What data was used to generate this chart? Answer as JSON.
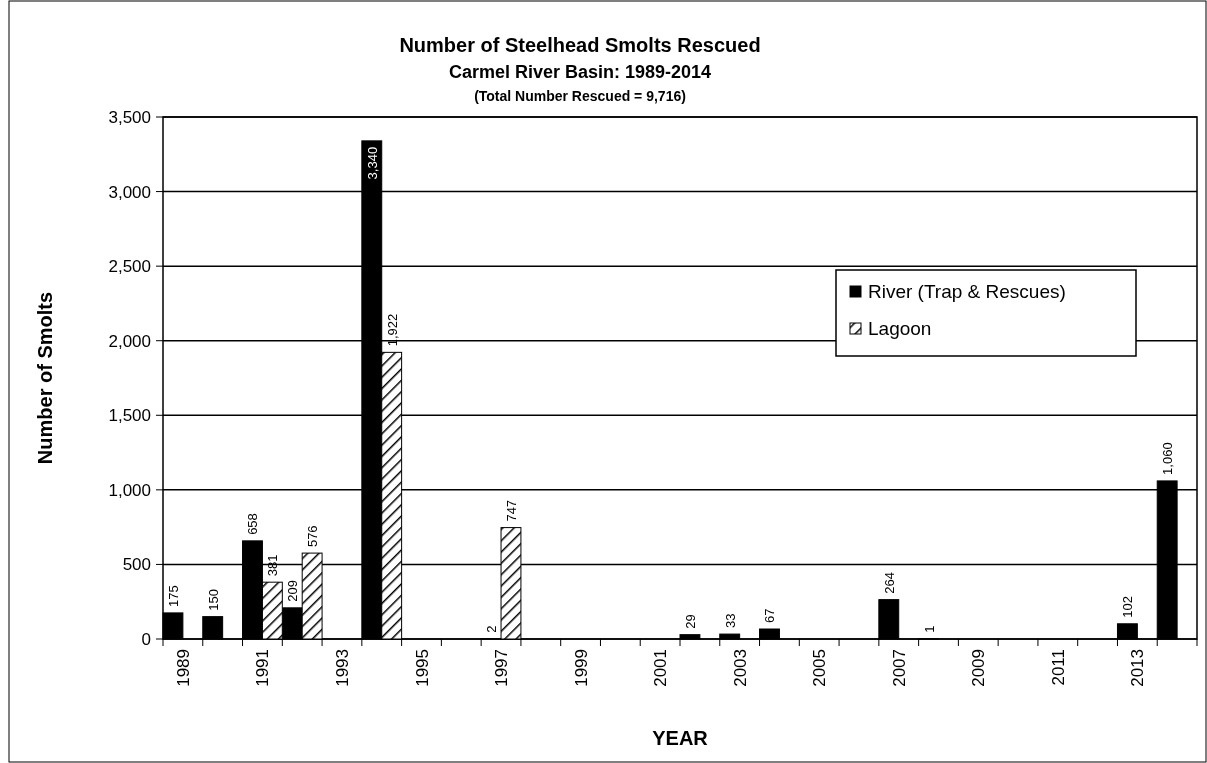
{
  "chart_data": {
    "type": "bar",
    "title": "Number of Steelhead Smolts Rescued",
    "subtitle": "Carmel River Basin:  1989-2014",
    "annotations": [
      "(Total Number Rescued = 9,716)"
    ],
    "xlabel": "YEAR",
    "ylabel": "Number of Smolts",
    "categories": [
      "1989",
      null,
      "1991",
      null,
      "1993",
      null,
      "1995",
      null,
      "1997",
      null,
      "1999",
      null,
      "2001",
      null,
      "2003",
      null,
      "2005",
      null,
      "2007",
      null,
      "2009",
      null,
      "2011",
      null,
      "2013",
      null
    ],
    "series": [
      {
        "name": "River (Trap & Rescues)",
        "color": "#000000",
        "values": [
          175,
          150,
          658,
          209,
          null,
          3340,
          null,
          null,
          2,
          null,
          null,
          null,
          null,
          29,
          33,
          67,
          null,
          null,
          264,
          1,
          null,
          null,
          null,
          null,
          102,
          1060
        ],
        "value_labels": [
          "175",
          "150",
          "658",
          "209",
          null,
          "3,340",
          null,
          null,
          "2",
          null,
          null,
          null,
          null,
          "29",
          "33",
          "67",
          null,
          null,
          "264",
          "1",
          null,
          null,
          null,
          null,
          "102",
          "1,060"
        ]
      },
      {
        "name": "Lagoon",
        "color": "#000000",
        "values": [
          null,
          null,
          381,
          576,
          null,
          1922,
          null,
          null,
          747,
          null,
          null,
          null,
          null,
          null,
          null,
          null,
          null,
          null,
          null,
          null,
          null,
          null,
          null,
          null,
          null,
          null
        ],
        "value_labels": [
          null,
          null,
          "381",
          "576",
          null,
          "1,922",
          null,
          null,
          "747",
          null,
          null,
          null,
          null,
          null,
          null,
          null,
          null,
          null,
          null,
          null,
          null,
          null,
          null,
          null,
          null,
          null
        ]
      }
    ],
    "ylim": [
      0,
      3500
    ],
    "yticks": [
      0,
      500,
      {
        "value": 1000,
        "label": "1,000"
      },
      {
        "value": 1500,
        "label": "1,500"
      },
      {
        "value": 2000,
        "label": "2,000"
      },
      {
        "value": 2500,
        "label": "2,500"
      },
      {
        "value": 3000,
        "label": "3,000"
      },
      {
        "value": 3500,
        "label": "3,500"
      }
    ],
    "grid": "y",
    "legend": "right"
  }
}
